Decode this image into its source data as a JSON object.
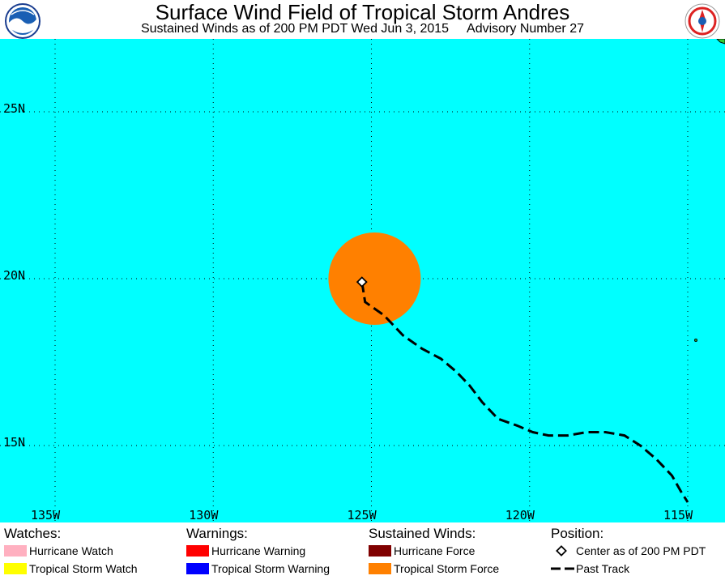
{
  "header": {
    "title": "Surface Wind Field of Tropical Storm Andres",
    "subtitle_left": "Sustained Winds as of 200 PM PDT Wed Jun 3, 2015",
    "subtitle_right": "Advisory Number 27",
    "left_logo": "noaa-logo",
    "right_logo": "nws-logo"
  },
  "map": {
    "ocean_color": "#00FFFF",
    "lat_labels": [
      "25N",
      "20N",
      "15N"
    ],
    "lon_labels": [
      "135W",
      "130W",
      "125W",
      "120W",
      "115W"
    ],
    "lat_values": [
      25,
      20,
      15
    ],
    "lon_values": [
      -135,
      -130,
      -125,
      -120,
      -115
    ],
    "storm_center": {
      "lat": 19.9,
      "lon": -125.3
    },
    "tropical_storm_force_color": "#FF8000",
    "past_track": [
      [
        19.9,
        -125.3
      ],
      [
        19.3,
        -125.2
      ],
      [
        18.9,
        -124.6
      ],
      [
        18.3,
        -124.0
      ],
      [
        17.9,
        -123.4
      ],
      [
        17.6,
        -122.8
      ],
      [
        17.2,
        -122.3
      ],
      [
        16.8,
        -121.9
      ],
      [
        16.3,
        -121.5
      ],
      [
        15.8,
        -121.0
      ],
      [
        15.6,
        -120.4
      ],
      [
        15.4,
        -119.9
      ],
      [
        15.3,
        -119.4
      ],
      [
        15.3,
        -118.8
      ],
      [
        15.4,
        -118.2
      ],
      [
        15.4,
        -117.6
      ],
      [
        15.3,
        -117.0
      ],
      [
        15.0,
        -116.5
      ],
      [
        14.6,
        -116.0
      ],
      [
        14.1,
        -115.5
      ],
      [
        13.6,
        -115.2
      ],
      [
        13.3,
        -115.0
      ]
    ]
  },
  "legend": {
    "watches": {
      "heading": "Watches:",
      "items": [
        {
          "label": "Hurricane Watch",
          "color": "#FFB0C0"
        },
        {
          "label": "Tropical Storm Watch",
          "color": "#FFFF00"
        }
      ]
    },
    "warnings": {
      "heading": "Warnings:",
      "items": [
        {
          "label": "Hurricane Warning",
          "color": "#FF0000"
        },
        {
          "label": "Tropical Storm Warning",
          "color": "#0000FF"
        }
      ]
    },
    "sustained_winds": {
      "heading": "Sustained Winds:",
      "items": [
        {
          "label": "Hurricane Force",
          "color": "#800000"
        },
        {
          "label": "Tropical Storm Force",
          "color": "#FF8000"
        }
      ]
    },
    "position": {
      "heading": "Position:",
      "center_label": "Center as of 200 PM PDT",
      "track_label": "Past Track"
    }
  }
}
